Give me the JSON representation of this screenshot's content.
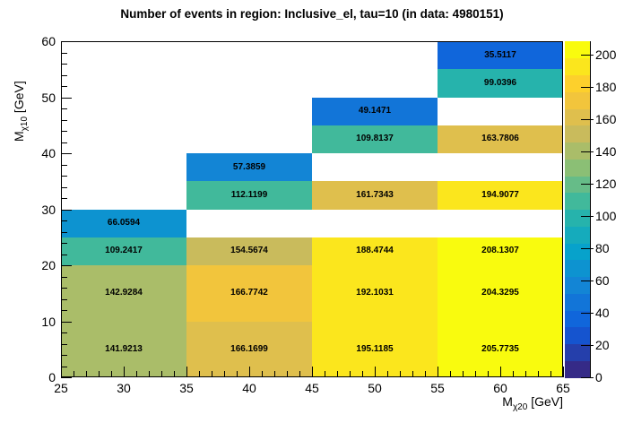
{
  "chart_data": {
    "type": "heatmap",
    "title": "Number of events in region: Inclusive_el, tau=10 (in data: 4980151)",
    "xlabel": {
      "base": "M",
      "sub": "χ20",
      "unit": " [GeV]"
    },
    "ylabel": {
      "base": "M",
      "sub": "χ10",
      "unit": " [GeV]"
    },
    "x_range": [
      25,
      65
    ],
    "y_range": [
      0,
      60
    ],
    "z_range": [
      0,
      208.1307
    ],
    "x_major_ticks": [
      25,
      30,
      35,
      40,
      45,
      50,
      55,
      60,
      65
    ],
    "x_minor_step": 1,
    "y_major_ticks": [
      0,
      10,
      20,
      30,
      40,
      50,
      60
    ],
    "y_minor_step": 2,
    "colorbar_ticks": [
      0,
      20,
      40,
      60,
      80,
      100,
      120,
      140,
      160,
      180,
      200
    ],
    "n_contours": 20,
    "palette_stops": [
      "#352a87",
      "#0f5cdd",
      "#1481d6",
      "#06a4ca",
      "#2eb7a4",
      "#87bf77",
      "#d1bb59",
      "#fec832",
      "#f9fb0e"
    ],
    "x_bin_edges": [
      25,
      35,
      45,
      55,
      65
    ],
    "y_bin_edges": [
      0,
      10,
      20,
      25,
      30,
      35,
      40,
      45,
      50,
      55,
      60
    ],
    "cells": [
      {
        "x0": 25,
        "x1": 35,
        "y0": 0,
        "y1": 10,
        "value": 141.9213
      },
      {
        "x0": 25,
        "x1": 35,
        "y0": 10,
        "y1": 20,
        "value": 142.9284
      },
      {
        "x0": 25,
        "x1": 35,
        "y0": 20,
        "y1": 25,
        "value": 109.2417
      },
      {
        "x0": 25,
        "x1": 35,
        "y0": 25,
        "y1": 30,
        "value": 66.0594
      },
      {
        "x0": 35,
        "x1": 45,
        "y0": 0,
        "y1": 10,
        "value": 166.1699
      },
      {
        "x0": 35,
        "x1": 45,
        "y0": 10,
        "y1": 20,
        "value": 166.7742
      },
      {
        "x0": 35,
        "x1": 45,
        "y0": 20,
        "y1": 25,
        "value": 154.5674
      },
      {
        "x0": 35,
        "x1": 45,
        "y0": 30,
        "y1": 35,
        "value": 112.1199
      },
      {
        "x0": 35,
        "x1": 45,
        "y0": 35,
        "y1": 40,
        "value": 57.3859
      },
      {
        "x0": 45,
        "x1": 55,
        "y0": 0,
        "y1": 10,
        "value": 195.1185
      },
      {
        "x0": 45,
        "x1": 55,
        "y0": 10,
        "y1": 20,
        "value": 192.1031
      },
      {
        "x0": 45,
        "x1": 55,
        "y0": 20,
        "y1": 25,
        "value": 188.4744
      },
      {
        "x0": 45,
        "x1": 55,
        "y0": 30,
        "y1": 35,
        "value": 161.7343
      },
      {
        "x0": 45,
        "x1": 55,
        "y0": 40,
        "y1": 45,
        "value": 109.8137
      },
      {
        "x0": 45,
        "x1": 55,
        "y0": 45,
        "y1": 50,
        "value": 49.1471
      },
      {
        "x0": 55,
        "x1": 65,
        "y0": 0,
        "y1": 10,
        "value": 205.7735
      },
      {
        "x0": 55,
        "x1": 65,
        "y0": 10,
        "y1": 20,
        "value": 204.3295
      },
      {
        "x0": 55,
        "x1": 65,
        "y0": 20,
        "y1": 25,
        "value": 208.1307
      },
      {
        "x0": 55,
        "x1": 65,
        "y0": 30,
        "y1": 35,
        "value": 194.9077
      },
      {
        "x0": 55,
        "x1": 65,
        "y0": 40,
        "y1": 45,
        "value": 163.7806
      },
      {
        "x0": 55,
        "x1": 65,
        "y0": 50,
        "y1": 55,
        "value": 99.0396
      },
      {
        "x0": 55,
        "x1": 65,
        "y0": 55,
        "y1": 60,
        "value": 35.5117
      }
    ]
  }
}
